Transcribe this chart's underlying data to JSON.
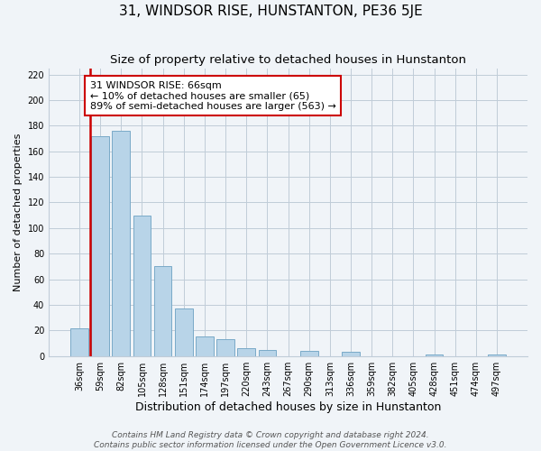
{
  "title": "31, WINDSOR RISE, HUNSTANTON, PE36 5JE",
  "subtitle": "Size of property relative to detached houses in Hunstanton",
  "xlabel": "Distribution of detached houses by size in Hunstanton",
  "ylabel": "Number of detached properties",
  "bin_labels": [
    "36sqm",
    "59sqm",
    "82sqm",
    "105sqm",
    "128sqm",
    "151sqm",
    "174sqm",
    "197sqm",
    "220sqm",
    "243sqm",
    "267sqm",
    "290sqm",
    "313sqm",
    "336sqm",
    "359sqm",
    "382sqm",
    "405sqm",
    "428sqm",
    "451sqm",
    "474sqm",
    "497sqm"
  ],
  "bar_values": [
    22,
    172,
    176,
    110,
    70,
    37,
    15,
    13,
    6,
    5,
    0,
    4,
    0,
    3,
    0,
    0,
    0,
    1,
    0,
    0,
    1
  ],
  "bar_color": "#b8d4e8",
  "bar_edge_color": "#7aaac8",
  "vline_color": "#cc0000",
  "annotation_text": "31 WINDSOR RISE: 66sqm\n← 10% of detached houses are smaller (65)\n89% of semi-detached houses are larger (563) →",
  "annotation_box_color": "#ffffff",
  "annotation_box_edge": "#cc0000",
  "ylim": [
    0,
    225
  ],
  "yticks": [
    0,
    20,
    40,
    60,
    80,
    100,
    120,
    140,
    160,
    180,
    200,
    220
  ],
  "footer1": "Contains HM Land Registry data © Crown copyright and database right 2024.",
  "footer2": "Contains public sector information licensed under the Open Government Licence v3.0.",
  "bg_color": "#f0f4f8",
  "grid_color": "#c0ccd8",
  "title_fontsize": 11,
  "subtitle_fontsize": 9.5,
  "xlabel_fontsize": 9,
  "ylabel_fontsize": 8,
  "tick_fontsize": 7,
  "annot_fontsize": 8,
  "footer_fontsize": 6.5
}
